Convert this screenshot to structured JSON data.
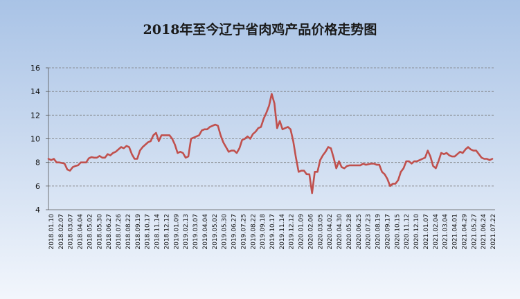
{
  "chart_data": {
    "type": "line",
    "title": "2018年至今辽宁省肉鸡产品价格走势图",
    "xlabel": "",
    "ylabel": "",
    "ylim": [
      4,
      16
    ],
    "yticks": [
      4,
      6,
      8,
      10,
      12,
      14,
      16
    ],
    "grid": true,
    "line_color": "#c0504d",
    "xtick_labels": [
      "2018.01.10",
      "2018.02.07",
      "2018.03.07",
      "2018.04.04",
      "2018.05.02",
      "2018.05.30",
      "2018.06.27",
      "2018.07.26",
      "2018.08.22",
      "2018.09.19",
      "2018.10.17",
      "2018.11.14",
      "2018.12.12",
      "2019.01.09",
      "2019.02.13",
      "2019.03.07",
      "2019.04.04",
      "2019.05.02",
      "2019.05.30",
      "2019.06.27",
      "2019.07.25",
      "2019.08.22",
      "2019.09.18",
      "2019.10.17",
      "2019.11.14",
      "2019.12.12",
      "2020.01.09",
      "2020.02.06",
      "2020.03.05",
      "2020.04.02",
      "2020.04.30",
      "2020.05.28",
      "2020.06.25",
      "2020.07.23",
      "2020.08.19",
      "2020.09.17",
      "2020.10.15",
      "2020.11.12",
      "2020.12.10",
      "2021.01.07",
      "2021.02.04",
      "2021.03.04",
      "2021.04.01",
      "2021.04.29",
      "2021.05.27",
      "2021.06.24",
      "2021.07.22"
    ],
    "series": [
      {
        "values": [
          8.3,
          8.2,
          8.3,
          8.0,
          8.0,
          7.95,
          7.9,
          7.4,
          7.3,
          7.6,
          7.7,
          7.75,
          8.0,
          8.0,
          8.0,
          8.35,
          8.45,
          8.4,
          8.4,
          8.55,
          8.4,
          8.4,
          8.7,
          8.6,
          8.8,
          8.9,
          9.1,
          9.3,
          9.2,
          9.4,
          9.3,
          8.7,
          8.3,
          8.3,
          9.0,
          9.3,
          9.5,
          9.7,
          9.8,
          10.3,
          10.5,
          9.8,
          10.3,
          10.3,
          10.3,
          10.3,
          10.0,
          9.5,
          8.8,
          8.9,
          8.8,
          8.4,
          8.5,
          10.0,
          10.1,
          10.2,
          10.3,
          10.7,
          10.8,
          10.8,
          11.0,
          11.1,
          11.2,
          11.1,
          10.3,
          9.7,
          9.3,
          8.9,
          9.0,
          9.0,
          8.8,
          9.2,
          9.9,
          10.0,
          10.2,
          10.0,
          10.4,
          10.6,
          10.9,
          11.0,
          11.7,
          12.2,
          12.8,
          13.8,
          13.0,
          10.9,
          11.5,
          10.8,
          10.9,
          11.0,
          10.8,
          9.8,
          8.4,
          7.2,
          7.3,
          7.3,
          7.0,
          7.0,
          5.4,
          7.2,
          7.2,
          8.2,
          8.6,
          8.9,
          9.3,
          9.2,
          8.4,
          7.5,
          8.1,
          7.6,
          7.5,
          7.7,
          7.75,
          7.75,
          7.75,
          7.75,
          7.75,
          7.9,
          7.8,
          7.85,
          7.9,
          7.9,
          7.8,
          7.8,
          7.2,
          7.0,
          6.6,
          6.0,
          6.2,
          6.2,
          6.5,
          7.2,
          7.5,
          8.1,
          8.1,
          7.9,
          8.1,
          8.1,
          8.2,
          8.3,
          8.4,
          9.0,
          8.5,
          7.7,
          7.5,
          8.1,
          8.8,
          8.7,
          8.8,
          8.6,
          8.5,
          8.5,
          8.7,
          8.9,
          8.8,
          9.1,
          9.3,
          9.1,
          9.0,
          9.0,
          8.7,
          8.4,
          8.3,
          8.3,
          8.2,
          8.3
        ]
      }
    ]
  }
}
